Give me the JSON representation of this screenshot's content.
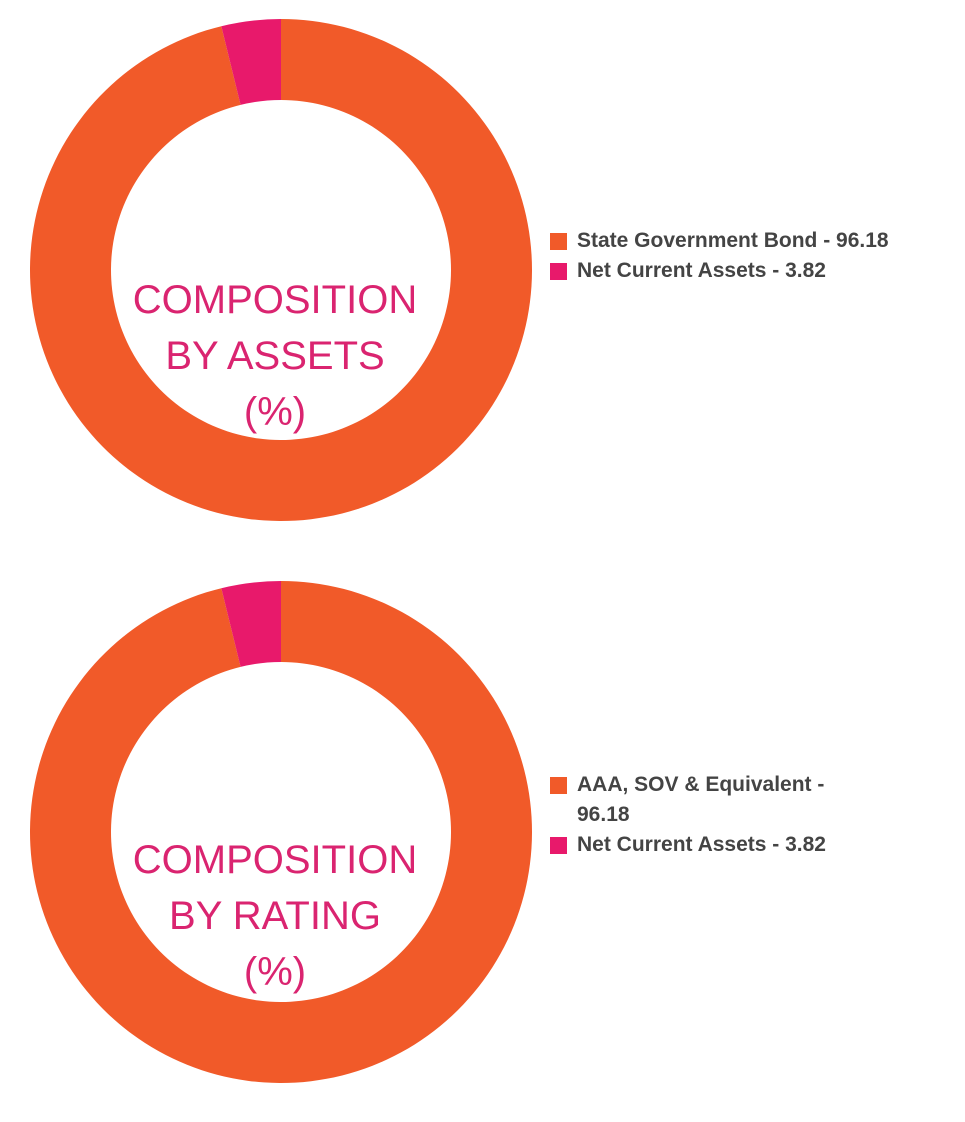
{
  "colors": {
    "orange": "#F15A29",
    "pink": "#E8196B",
    "label": "#DA2470",
    "legend_text": "#444444"
  },
  "chart_data": [
    {
      "type": "pie",
      "donut": true,
      "title_lines": [
        "COMPOSITION",
        "BY ASSETS",
        "(%)"
      ],
      "categories": [
        "State Government Bond",
        "Net Current Assets"
      ],
      "values": [
        96.18,
        3.82
      ],
      "colors": [
        "#F15A29",
        "#E8196B"
      ],
      "legend": [
        {
          "label": "State Government Bond - 96.18"
        },
        {
          "label": "Net Current Assets - 3.82"
        }
      ],
      "legend_placement": "right"
    },
    {
      "type": "pie",
      "donut": true,
      "title_lines": [
        "COMPOSITION",
        "BY RATING",
        "(%)"
      ],
      "categories": [
        "AAA, SOV & Equivalent",
        "Net Current Assets"
      ],
      "values": [
        96.18,
        3.82
      ],
      "colors": [
        "#F15A29",
        "#E8196B"
      ],
      "legend": [
        {
          "label": "AAA, SOV & Equivalent - 96.18"
        },
        {
          "label": "Net Current Assets - 3.82"
        }
      ],
      "legend_placement": "right"
    }
  ]
}
